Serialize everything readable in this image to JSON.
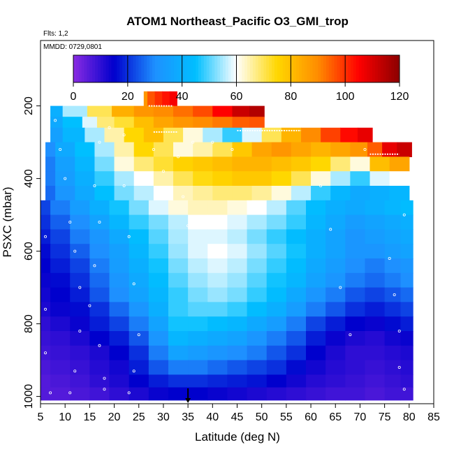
{
  "chart_data": {
    "type": "heatmap",
    "title": "ATOM1 Northeast_Pacific O3_GMI_trop",
    "flights_note": "Flts: 1,2",
    "date_note": "MMDD: 0729,0801",
    "xlabel": "Latitude (deg N)",
    "ylabel": "PSXC (mbar)",
    "xlim": [
      5,
      85
    ],
    "ylim": [
      1020,
      20
    ],
    "y_reversed": true,
    "x_ticks": [
      5,
      10,
      15,
      20,
      25,
      30,
      35,
      40,
      45,
      50,
      55,
      60,
      65,
      70,
      75,
      80,
      85
    ],
    "y_ticks": [
      200,
      400,
      600,
      800,
      1000
    ],
    "colorbar": {
      "min": 0,
      "max": 120,
      "ticks": [
        0,
        20,
        40,
        60,
        80,
        100,
        120
      ],
      "stops": [
        "#8a2be2",
        "#0000cd",
        "#1e90ff",
        "#00bfff",
        "#ffffff",
        "#ffd700",
        "#ff8c00",
        "#ff0000",
        "#8b0000"
      ]
    },
    "marker_latitude": 35,
    "layers": [
      {
        "p_top": 160,
        "p_bot": 200,
        "x": [
          26,
          27.5,
          29,
          30.5,
          32
        ],
        "v": [
          88,
          96,
          100,
          103,
          106
        ]
      },
      {
        "p_top": 200,
        "p_bot": 230,
        "x": [
          7,
          12,
          17,
          22,
          26,
          30,
          34,
          38,
          42,
          46,
          49
        ],
        "v": [
          40,
          55,
          70,
          83,
          88,
          90,
          93,
          97,
          105,
          112,
          115
        ]
      },
      {
        "p_top": 230,
        "p_bot": 260,
        "x": [
          7,
          12,
          15,
          18,
          22,
          26,
          30,
          34,
          38,
          42,
          46,
          49
        ],
        "v": [
          38,
          45,
          58,
          68,
          72,
          80,
          85,
          88,
          90,
          92,
          95,
          96
        ]
      },
      {
        "p_top": 260,
        "p_bot": 300,
        "x": [
          7,
          12,
          16,
          20,
          24,
          28,
          32,
          36,
          40,
          44,
          48,
          52,
          56,
          60,
          64,
          68,
          71
        ],
        "v": [
          35,
          42,
          55,
          65,
          75,
          80,
          70,
          62,
          55,
          48,
          58,
          70,
          82,
          90,
          98,
          104,
          108
        ]
      },
      {
        "p_top": 300,
        "p_bot": 340,
        "x": [
          6,
          10,
          14,
          18,
          22,
          26,
          30,
          34,
          38,
          42,
          46,
          50,
          54,
          58,
          62,
          66,
          70,
          73,
          76,
          79
        ],
        "v": [
          30,
          38,
          45,
          55,
          65,
          75,
          70,
          62,
          65,
          70,
          78,
          85,
          88,
          85,
          82,
          85,
          88,
          95,
          108,
          112
        ]
      },
      {
        "p_top": 340,
        "p_bot": 380,
        "x": [
          6,
          10,
          14,
          18,
          22,
          26,
          30,
          34,
          38,
          42,
          46,
          50,
          54,
          58,
          62,
          66,
          70,
          74,
          78
        ],
        "v": [
          28,
          35,
          42,
          52,
          62,
          68,
          72,
          76,
          78,
          80,
          82,
          82,
          80,
          78,
          75,
          68,
          62,
          80,
          85
        ]
      },
      {
        "p_top": 380,
        "p_bot": 420,
        "x": [
          6,
          10,
          14,
          18,
          22,
          26,
          30,
          34,
          38,
          42,
          46,
          50,
          54,
          58,
          62,
          66,
          70,
          74,
          78
        ],
        "v": [
          28,
          34,
          40,
          48,
          55,
          60,
          65,
          70,
          74,
          76,
          78,
          78,
          75,
          70,
          62,
          55,
          48,
          58,
          60
        ]
      },
      {
        "p_top": 420,
        "p_bot": 460,
        "x": [
          6,
          10,
          14,
          18,
          22,
          26,
          30,
          34,
          38,
          42,
          46,
          50,
          54,
          58,
          62,
          66,
          70,
          74,
          78
        ],
        "v": [
          26,
          32,
          38,
          45,
          52,
          56,
          60,
          64,
          66,
          68,
          68,
          66,
          62,
          56,
          48,
          42,
          38,
          40,
          42
        ]
      },
      {
        "p_top": 460,
        "p_bot": 500,
        "x": [
          5,
          9,
          13,
          17,
          21,
          25,
          29,
          33,
          37,
          41,
          45,
          49,
          53,
          57,
          61,
          65,
          69,
          73,
          77,
          79.5
        ],
        "v": [
          22,
          28,
          34,
          40,
          46,
          52,
          58,
          62,
          64,
          64,
          62,
          60,
          56,
          50,
          44,
          40,
          38,
          40,
          42,
          44
        ]
      },
      {
        "p_top": 500,
        "p_bot": 540,
        "x": [
          5,
          9,
          13,
          17,
          21,
          25,
          29,
          33,
          37,
          41,
          45,
          49,
          53,
          57,
          61,
          65,
          69,
          73,
          77,
          79.5
        ],
        "v": [
          20,
          25,
          30,
          36,
          42,
          48,
          52,
          56,
          60,
          60,
          58,
          55,
          52,
          48,
          42,
          38,
          34,
          36,
          38,
          40
        ]
      },
      {
        "p_top": 540,
        "p_bot": 580,
        "x": [
          5,
          9,
          13,
          17,
          21,
          25,
          29,
          33,
          37,
          41,
          45,
          49,
          53,
          57,
          61,
          65,
          69,
          73,
          77,
          79.5
        ],
        "v": [
          18,
          22,
          28,
          32,
          38,
          44,
          50,
          55,
          58,
          58,
          56,
          52,
          48,
          44,
          40,
          36,
          32,
          34,
          36,
          38
        ]
      },
      {
        "p_top": 580,
        "p_bot": 620,
        "x": [
          5,
          9,
          13,
          17,
          21,
          25,
          29,
          33,
          37,
          41,
          45,
          49,
          53,
          57,
          61,
          65,
          69,
          73,
          77,
          79.5
        ],
        "v": [
          16,
          20,
          25,
          30,
          35,
          42,
          48,
          54,
          58,
          60,
          58,
          54,
          50,
          46,
          40,
          36,
          32,
          32,
          34,
          36
        ]
      },
      {
        "p_top": 620,
        "p_bot": 660,
        "x": [
          5,
          9,
          13,
          17,
          21,
          25,
          29,
          33,
          37,
          41,
          45,
          49,
          53,
          57,
          61,
          65,
          69,
          73,
          77,
          79.5
        ],
        "v": [
          15,
          18,
          22,
          28,
          34,
          40,
          46,
          52,
          56,
          58,
          56,
          52,
          48,
          44,
          38,
          34,
          30,
          28,
          30,
          32
        ]
      },
      {
        "p_top": 660,
        "p_bot": 700,
        "x": [
          5,
          9,
          13,
          17,
          21,
          25,
          29,
          33,
          37,
          41,
          45,
          49,
          53,
          57,
          61,
          65,
          69,
          73,
          77,
          79.5
        ],
        "v": [
          14,
          16,
          20,
          26,
          32,
          38,
          44,
          50,
          54,
          56,
          54,
          50,
          46,
          42,
          36,
          32,
          28,
          26,
          28,
          30
        ]
      },
      {
        "p_top": 700,
        "p_bot": 740,
        "x": [
          5,
          9,
          13,
          17,
          21,
          25,
          29,
          33,
          37,
          41,
          45,
          49,
          53,
          57,
          61,
          65,
          69,
          73,
          77,
          79.5
        ],
        "v": [
          13,
          15,
          18,
          24,
          30,
          36,
          42,
          48,
          52,
          54,
          52,
          48,
          44,
          38,
          32,
          28,
          24,
          22,
          24,
          26
        ]
      },
      {
        "p_top": 740,
        "p_bot": 780,
        "x": [
          5,
          9,
          13,
          17,
          21,
          25,
          29,
          33,
          37,
          41,
          45,
          49,
          53,
          57,
          61,
          65,
          69,
          73,
          77,
          79.5
        ],
        "v": [
          12,
          14,
          16,
          20,
          26,
          32,
          40,
          48,
          50,
          50,
          48,
          44,
          40,
          34,
          28,
          24,
          20,
          18,
          20,
          22
        ]
      },
      {
        "p_top": 780,
        "p_bot": 820,
        "x": [
          5,
          9,
          13,
          17,
          21,
          25,
          29,
          33,
          37,
          41,
          45,
          49,
          53,
          57,
          61,
          65,
          69,
          73,
          77,
          79.5
        ],
        "v": [
          10,
          12,
          14,
          18,
          22,
          28,
          36,
          46,
          46,
          44,
          42,
          38,
          34,
          28,
          22,
          18,
          15,
          14,
          16,
          18
        ]
      },
      {
        "p_top": 820,
        "p_bot": 860,
        "x": [
          5,
          9,
          13,
          17,
          21,
          25,
          29,
          33,
          37,
          41,
          45,
          49,
          53,
          57,
          61,
          65,
          69,
          73,
          77,
          79.5
        ],
        "v": [
          9,
          10,
          12,
          15,
          18,
          24,
          32,
          42,
          40,
          38,
          36,
          32,
          28,
          24,
          18,
          14,
          12,
          11,
          13,
          14
        ]
      },
      {
        "p_top": 860,
        "p_bot": 900,
        "x": [
          5,
          9,
          13,
          17,
          21,
          25,
          29,
          33,
          37,
          41,
          45,
          49,
          53,
          57,
          61,
          65,
          69,
          73,
          77,
          79.5
        ],
        "v": [
          8,
          9,
          10,
          12,
          15,
          20,
          28,
          36,
          34,
          32,
          30,
          28,
          24,
          20,
          15,
          12,
          10,
          10,
          11,
          12
        ]
      },
      {
        "p_top": 900,
        "p_bot": 940,
        "x": [
          5,
          9,
          13,
          17,
          21,
          25,
          29,
          33,
          37,
          41,
          45,
          49,
          53,
          57,
          61,
          65,
          69,
          73,
          77,
          79.5
        ],
        "v": [
          7,
          8,
          9,
          11,
          13,
          18,
          24,
          28,
          28,
          26,
          24,
          22,
          20,
          16,
          13,
          11,
          10,
          9,
          10,
          11
        ]
      },
      {
        "p_top": 940,
        "p_bot": 975,
        "x": [
          5,
          9,
          13,
          17,
          21,
          25,
          29,
          33,
          37,
          41,
          45,
          49,
          53,
          57,
          61,
          65,
          69,
          73,
          77,
          79.5
        ],
        "v": [
          6,
          7,
          8,
          10,
          12,
          15,
          18,
          20,
          20,
          19,
          18,
          17,
          15,
          13,
          11,
          10,
          9,
          8,
          9,
          10
        ]
      },
      {
        "p_top": 975,
        "p_bot": 1010,
        "x": [
          5,
          9,
          13,
          17,
          21,
          25,
          29,
          33,
          37,
          41,
          45,
          49,
          53,
          57,
          61,
          65,
          69,
          73,
          77,
          79.5
        ],
        "v": [
          6,
          6,
          7,
          8,
          10,
          12,
          14,
          15,
          15,
          14,
          13,
          12,
          11,
          10,
          9,
          8,
          8,
          7,
          8,
          8
        ]
      }
    ],
    "sample_points": [
      {
        "x": 8,
        "y": 240
      },
      {
        "x": 9,
        "y": 320
      },
      {
        "x": 10,
        "y": 400
      },
      {
        "x": 11,
        "y": 520
      },
      {
        "x": 12,
        "y": 600
      },
      {
        "x": 13,
        "y": 700
      },
      {
        "x": 13,
        "y": 820
      },
      {
        "x": 12,
        "y": 930
      },
      {
        "x": 6,
        "y": 560
      },
      {
        "x": 6,
        "y": 760
      },
      {
        "x": 6,
        "y": 880
      },
      {
        "x": 7,
        "y": 990
      },
      {
        "x": 11,
        "y": 990
      },
      {
        "x": 18,
        "y": 980
      },
      {
        "x": 18,
        "y": 950
      },
      {
        "x": 17,
        "y": 860
      },
      {
        "x": 15,
        "y": 750
      },
      {
        "x": 16,
        "y": 640
      },
      {
        "x": 17,
        "y": 520
      },
      {
        "x": 16,
        "y": 420
      },
      {
        "x": 17,
        "y": 300
      },
      {
        "x": 19,
        "y": 260
      },
      {
        "x": 22,
        "y": 280
      },
      {
        "x": 22,
        "y": 420
      },
      {
        "x": 23,
        "y": 560
      },
      {
        "x": 24,
        "y": 690
      },
      {
        "x": 25,
        "y": 830
      },
      {
        "x": 24,
        "y": 930
      },
      {
        "x": 23,
        "y": 990
      },
      {
        "x": 28,
        "y": 320
      },
      {
        "x": 30,
        "y": 380
      },
      {
        "x": 33,
        "y": 340
      },
      {
        "x": 34,
        "y": 450
      },
      {
        "x": 35,
        "y": 530
      },
      {
        "x": 36,
        "y": 300
      },
      {
        "x": 40,
        "y": 300
      },
      {
        "x": 44,
        "y": 320
      },
      {
        "x": 62,
        "y": 420
      },
      {
        "x": 64,
        "y": 540
      },
      {
        "x": 66,
        "y": 700
      },
      {
        "x": 68,
        "y": 830
      },
      {
        "x": 71,
        "y": 320
      },
      {
        "x": 76,
        "y": 620
      },
      {
        "x": 77,
        "y": 720
      },
      {
        "x": 78,
        "y": 820
      },
      {
        "x": 78,
        "y": 920
      },
      {
        "x": 79,
        "y": 500
      },
      {
        "x": 79,
        "y": 980
      }
    ],
    "flight_tracks": [
      {
        "x1": 27,
        "x2": 32,
        "y": 200
      },
      {
        "x1": 28,
        "x2": 33,
        "y": 272
      },
      {
        "x1": 45,
        "x2": 58,
        "y": 268
      },
      {
        "x1": 72,
        "x2": 78,
        "y": 333
      }
    ]
  }
}
